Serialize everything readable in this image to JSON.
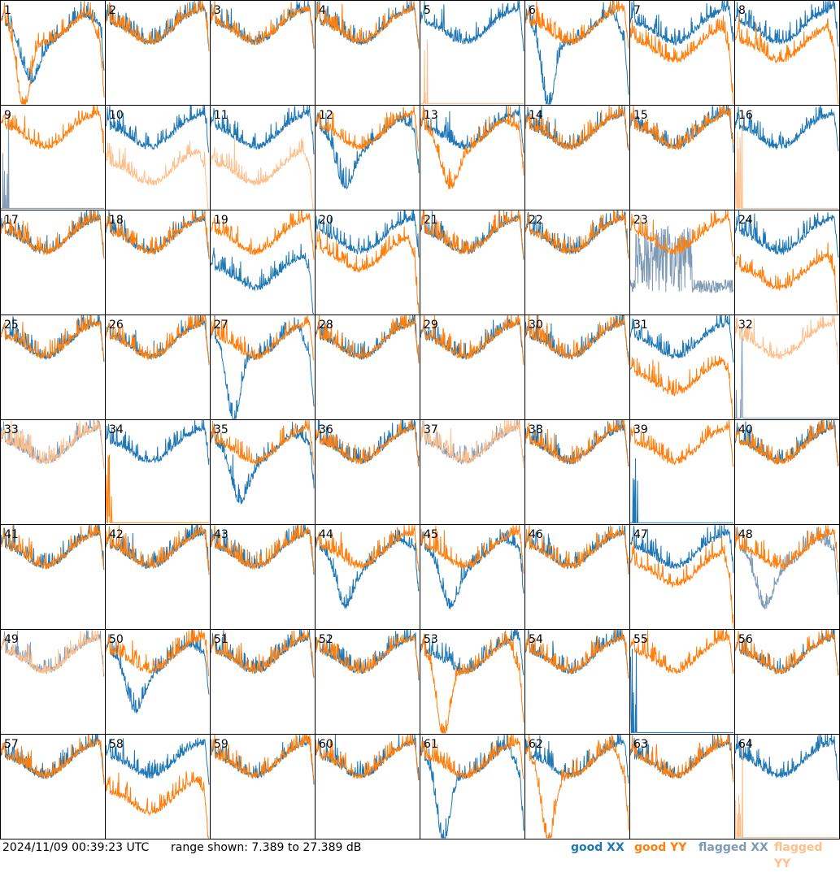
{
  "colors": {
    "good_xx": "#1f77b4",
    "good_yy": "#ff7f0e",
    "flagged_xx": "#7f9ab5",
    "flagged_yy": "#ffbf8a",
    "border": "#000000",
    "background": "#ffffff"
  },
  "footer": {
    "timestamp": "2024/11/09 00:39:23 UTC",
    "range_text": "range shown: 7.389 to 27.389 dB"
  },
  "legend": {
    "good_prefix": "good",
    "flagged_prefix": "flagged",
    "xx": "XX",
    "yy": "YY"
  },
  "chart_data": {
    "type": "line",
    "title": "",
    "xlabel": "",
    "ylabel": "",
    "ylim": [
      7.389,
      27.389
    ],
    "units": "dB",
    "grid": "8x8 panels",
    "series_names": [
      "good XX",
      "good YY",
      "flagged XX",
      "flagged YY"
    ],
    "panels": [
      {
        "label": "1",
        "xx": "good",
        "yy": "good",
        "yy_shape": "deep_dip",
        "xx_shape": "dip"
      },
      {
        "label": "2",
        "xx": "good",
        "yy": "good"
      },
      {
        "label": "3",
        "xx": "good",
        "yy": "good"
      },
      {
        "label": "4",
        "xx": "good",
        "yy": "good"
      },
      {
        "label": "5",
        "xx": "good",
        "yy": "flagged",
        "yy_shape": "dead"
      },
      {
        "label": "6",
        "xx": "good",
        "yy": "good",
        "xx_shape": "deep_dip"
      },
      {
        "label": "7",
        "xx": "good",
        "yy": "good",
        "yy_shape": "lower"
      },
      {
        "label": "8",
        "xx": "good",
        "yy": "good",
        "yy_shape": "lower"
      },
      {
        "label": "9",
        "xx": "flagged",
        "yy": "good",
        "xx_shape": "dead"
      },
      {
        "label": "10",
        "xx": "good",
        "yy": "flagged",
        "yy_shape": "low"
      },
      {
        "label": "11",
        "xx": "good",
        "yy": "flagged",
        "yy_shape": "low"
      },
      {
        "label": "12",
        "xx": "good",
        "yy": "good",
        "xx_shape": "dip"
      },
      {
        "label": "13",
        "xx": "good",
        "yy": "good",
        "yy_shape": "dip"
      },
      {
        "label": "14",
        "xx": "good",
        "yy": "good"
      },
      {
        "label": "15",
        "xx": "good",
        "yy": "good"
      },
      {
        "label": "16",
        "xx": "good",
        "yy": "flagged",
        "yy_shape": "dead"
      },
      {
        "label": "17",
        "xx": "good",
        "yy": "good"
      },
      {
        "label": "18",
        "xx": "good",
        "yy": "good"
      },
      {
        "label": "19",
        "xx": "good",
        "yy": "good",
        "xx_shape": "low"
      },
      {
        "label": "20",
        "xx": "good",
        "yy": "good",
        "yy_shape": "lower"
      },
      {
        "label": "21",
        "xx": "good",
        "yy": "good"
      },
      {
        "label": "22",
        "xx": "good",
        "yy": "good"
      },
      {
        "label": "23",
        "xx": "flagged",
        "yy": "good",
        "xx_shape": "noisy"
      },
      {
        "label": "24",
        "xx": "good",
        "yy": "good",
        "yy_shape": "low"
      },
      {
        "label": "25",
        "xx": "good",
        "yy": "good"
      },
      {
        "label": "26",
        "xx": "good",
        "yy": "good"
      },
      {
        "label": "27",
        "xx": "good",
        "yy": "good",
        "xx_shape": "deep_dip"
      },
      {
        "label": "28",
        "xx": "good",
        "yy": "good"
      },
      {
        "label": "29",
        "xx": "good",
        "yy": "good"
      },
      {
        "label": "30",
        "xx": "good",
        "yy": "good"
      },
      {
        "label": "31",
        "xx": "good",
        "yy": "good",
        "yy_shape": "low"
      },
      {
        "label": "32",
        "xx": "flagged",
        "yy": "flagged",
        "xx_shape": "dead"
      },
      {
        "label": "33",
        "xx": "flagged",
        "yy": "flagged"
      },
      {
        "label": "34",
        "xx": "good",
        "yy": "good",
        "yy_shape": "dead"
      },
      {
        "label": "35",
        "xx": "good",
        "yy": "good",
        "xx_shape": "dip"
      },
      {
        "label": "36",
        "xx": "good",
        "yy": "good"
      },
      {
        "label": "37",
        "xx": "flagged",
        "yy": "flagged"
      },
      {
        "label": "38",
        "xx": "good",
        "yy": "good"
      },
      {
        "label": "39",
        "xx": "good",
        "yy": "good",
        "xx_shape": "dead"
      },
      {
        "label": "40",
        "xx": "good",
        "yy": "good"
      },
      {
        "label": "41",
        "xx": "good",
        "yy": "good"
      },
      {
        "label": "42",
        "xx": "good",
        "yy": "good"
      },
      {
        "label": "43",
        "xx": "good",
        "yy": "good"
      },
      {
        "label": "44",
        "xx": "good",
        "yy": "good",
        "xx_shape": "dip"
      },
      {
        "label": "45",
        "xx": "good",
        "yy": "good",
        "xx_shape": "dip"
      },
      {
        "label": "46",
        "xx": "good",
        "yy": "good"
      },
      {
        "label": "47",
        "xx": "good",
        "yy": "good",
        "yy_shape": "lower"
      },
      {
        "label": "48",
        "xx": "flagged",
        "yy": "good",
        "xx_shape": "dip"
      },
      {
        "label": "49",
        "xx": "flagged",
        "yy": "flagged"
      },
      {
        "label": "50",
        "xx": "good",
        "yy": "good",
        "xx_shape": "dip"
      },
      {
        "label": "51",
        "xx": "good",
        "yy": "good"
      },
      {
        "label": "52",
        "xx": "good",
        "yy": "good"
      },
      {
        "label": "53",
        "xx": "good",
        "yy": "good",
        "yy_shape": "deep_dip"
      },
      {
        "label": "54",
        "xx": "good",
        "yy": "good"
      },
      {
        "label": "55",
        "xx": "good",
        "yy": "good",
        "xx_shape": "dead"
      },
      {
        "label": "56",
        "xx": "good",
        "yy": "good"
      },
      {
        "label": "57",
        "xx": "good",
        "yy": "good"
      },
      {
        "label": "58",
        "xx": "good",
        "yy": "good",
        "yy_shape": "low"
      },
      {
        "label": "59",
        "xx": "good",
        "yy": "good"
      },
      {
        "label": "60",
        "xx": "good",
        "yy": "good"
      },
      {
        "label": "61",
        "xx": "good",
        "yy": "good",
        "xx_shape": "deep_dip"
      },
      {
        "label": "62",
        "xx": "good",
        "yy": "good",
        "yy_shape": "deep_dip"
      },
      {
        "label": "63",
        "xx": "good",
        "yy": "good"
      },
      {
        "label": "64",
        "xx": "good",
        "yy": "flagged",
        "yy_shape": "dead"
      }
    ]
  }
}
